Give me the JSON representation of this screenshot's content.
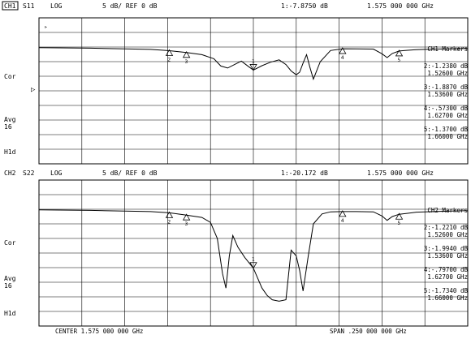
{
  "channels": [
    {
      "id": "CH1",
      "param": "S11",
      "format": "LOG",
      "scale": "5 dB/ REF 0 dB",
      "active_marker": "1:-7.8750 dB",
      "marker_freq": "1.575 000 000 GHz",
      "side_labels": {
        "cor": "Cor",
        "avg": "Avg",
        "avg_n": "16",
        "hld": "H1d"
      },
      "marker_panel_title": "CH1 Markers",
      "marker_list": [
        {
          "id": "2",
          "value": "-1.2380 dB",
          "freq": "1.52600 GHz"
        },
        {
          "id": "3",
          "value": "-1.8870 dB",
          "freq": "1.53600 GHz"
        },
        {
          "id": "4",
          "value": "-.57300 dB",
          "freq": "1.62700 GHz"
        },
        {
          "id": "5",
          "value": "-1.3700 dB",
          "freq": "1.66000 GHz"
        }
      ]
    },
    {
      "id": "CH2",
      "param": "S22",
      "format": "LOG",
      "scale": "5 dB/ REF 0 dB",
      "active_marker": "1:-20.172 dB",
      "marker_freq": "1.575 000 000 GHz",
      "side_labels": {
        "cor": "Cor",
        "avg": "Avg",
        "avg_n": "16",
        "hld": "H1d"
      },
      "marker_panel_title": "CH2 Markers",
      "marker_list": [
        {
          "id": "2",
          "value": "-1.2210 dB",
          "freq": "1.52600 GHz"
        },
        {
          "id": "3",
          "value": "-1.9940 dB",
          "freq": "1.53600 GHz"
        },
        {
          "id": "4",
          "value": "-.79700 dB",
          "freq": "1.62700 GHz"
        },
        {
          "id": "5",
          "value": "-1.7340 dB",
          "freq": "1.66000 GHz"
        }
      ]
    }
  ],
  "footer": {
    "center": "CENTER 1.575 000 000 GHz",
    "span": "SPAN .250 000 000 GHz"
  },
  "chart_data": [
    {
      "type": "line",
      "title": "CH1 S11 LOG",
      "xlabel": "",
      "ylabel": "",
      "xlim": [
        1.45,
        1.7
      ],
      "ylim": [
        -40,
        10
      ],
      "grid": true,
      "series": [
        {
          "name": "S11",
          "x": [
            1.45,
            1.48,
            1.5,
            1.515,
            1.526,
            1.536,
            1.545,
            1.552,
            1.556,
            1.56,
            1.564,
            1.568,
            1.572,
            1.575,
            1.58,
            1.585,
            1.59,
            1.594,
            1.597,
            1.6,
            1.602,
            1.604,
            1.606,
            1.608,
            1.61,
            1.614,
            1.62,
            1.627,
            1.635,
            1.645,
            1.65,
            1.653,
            1.656,
            1.66,
            1.665,
            1.67,
            1.68,
            1.69,
            1.7
          ],
          "y": [
            -0.2,
            -0.4,
            -0.6,
            -0.8,
            -1.24,
            -1.89,
            -2.6,
            -4.0,
            -6.5,
            -7.2,
            -6.0,
            -4.8,
            -6.6,
            -7.9,
            -6.4,
            -5.2,
            -4.4,
            -6.0,
            -8.2,
            -9.5,
            -8.6,
            -5.5,
            -2.6,
            -7.0,
            -11.0,
            -5.0,
            -1.2,
            -0.57,
            -0.6,
            -0.7,
            -2.3,
            -3.6,
            -2.2,
            -1.37,
            -1.1,
            -0.9,
            -0.7,
            -0.6,
            -0.5
          ]
        }
      ],
      "markers": [
        {
          "id": "1",
          "x": 1.575
        },
        {
          "id": "2",
          "x": 1.526
        },
        {
          "id": "3",
          "x": 1.536
        },
        {
          "id": "4",
          "x": 1.627
        },
        {
          "id": "5",
          "x": 1.66
        }
      ]
    },
    {
      "type": "line",
      "title": "CH2 S22 LOG",
      "xlabel": "",
      "ylabel": "",
      "xlim": [
        1.45,
        1.7
      ],
      "ylim": [
        -40,
        10
      ],
      "grid": true,
      "series": [
        {
          "name": "S22",
          "x": [
            1.45,
            1.48,
            1.5,
            1.515,
            1.526,
            1.536,
            1.545,
            1.55,
            1.554,
            1.557,
            1.559,
            1.561,
            1.563,
            1.566,
            1.57,
            1.575,
            1.58,
            1.583,
            1.586,
            1.59,
            1.594,
            1.597,
            1.6,
            1.602,
            1.604,
            1.607,
            1.61,
            1.615,
            1.62,
            1.627,
            1.635,
            1.645,
            1.65,
            1.653,
            1.656,
            1.66,
            1.665,
            1.67,
            1.68,
            1.69,
            1.7
          ],
          "y": [
            -0.2,
            -0.4,
            -0.6,
            -0.8,
            -1.22,
            -1.99,
            -2.8,
            -4.5,
            -10.0,
            -22.0,
            -27.0,
            -16.0,
            -9.0,
            -13.0,
            -16.5,
            -20.2,
            -27.0,
            -29.5,
            -31.0,
            -31.5,
            -31.0,
            -14.0,
            -16.0,
            -21.0,
            -28.0,
            -16.0,
            -5.0,
            -1.6,
            -0.9,
            -0.8,
            -0.8,
            -0.9,
            -2.3,
            -3.8,
            -2.5,
            -1.73,
            -1.4,
            -1.0,
            -0.8,
            -0.6,
            -0.5
          ]
        }
      ],
      "markers": [
        {
          "id": "1",
          "x": 1.575
        },
        {
          "id": "2",
          "x": 1.526
        },
        {
          "id": "3",
          "x": 1.536
        },
        {
          "id": "4",
          "x": 1.627
        },
        {
          "id": "5",
          "x": 1.66
        }
      ]
    }
  ]
}
